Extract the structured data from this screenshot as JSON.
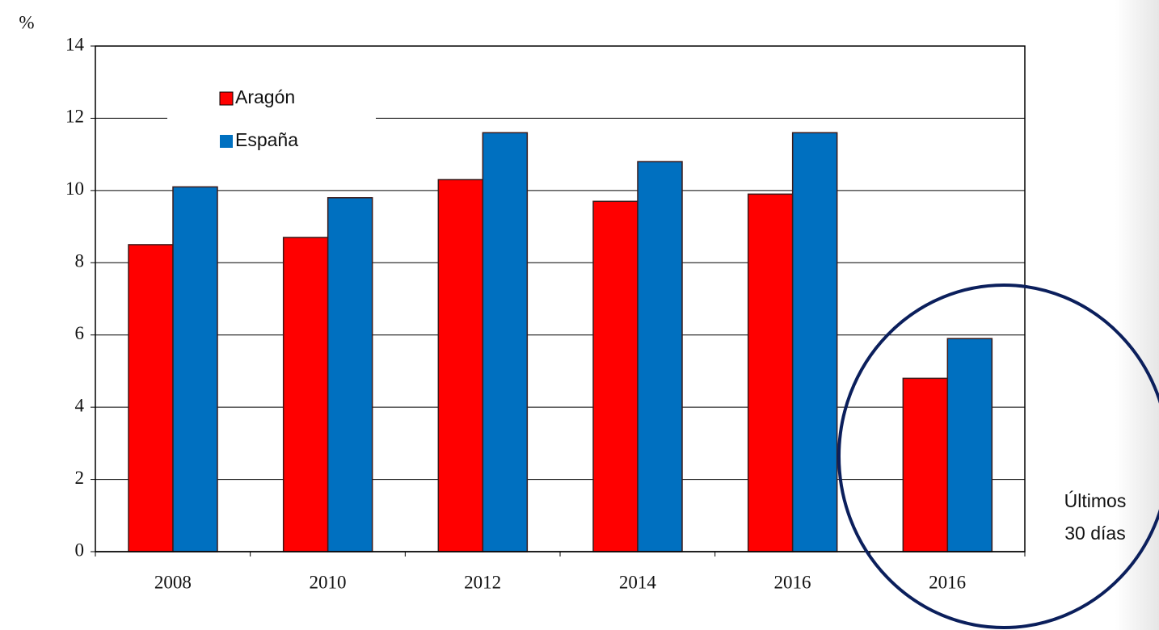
{
  "chart_data": {
    "type": "bar",
    "y_label": "%",
    "categories": [
      "2008",
      "2010",
      "2012",
      "2014",
      "2016",
      "2016"
    ],
    "series": [
      {
        "name": "Aragón",
        "color": "#ff0000",
        "values": [
          8.5,
          8.7,
          10.3,
          9.7,
          9.9,
          4.8
        ]
      },
      {
        "name": "España",
        "color": "#0070c0",
        "values": [
          10.1,
          9.8,
          11.6,
          10.8,
          11.6,
          5.9
        ]
      }
    ],
    "ylim": [
      0,
      14
    ],
    "yticks": [
      0,
      2,
      4,
      6,
      8,
      10,
      12,
      14
    ],
    "grid": true,
    "annotation": [
      "Últimos",
      "30 días"
    ]
  }
}
